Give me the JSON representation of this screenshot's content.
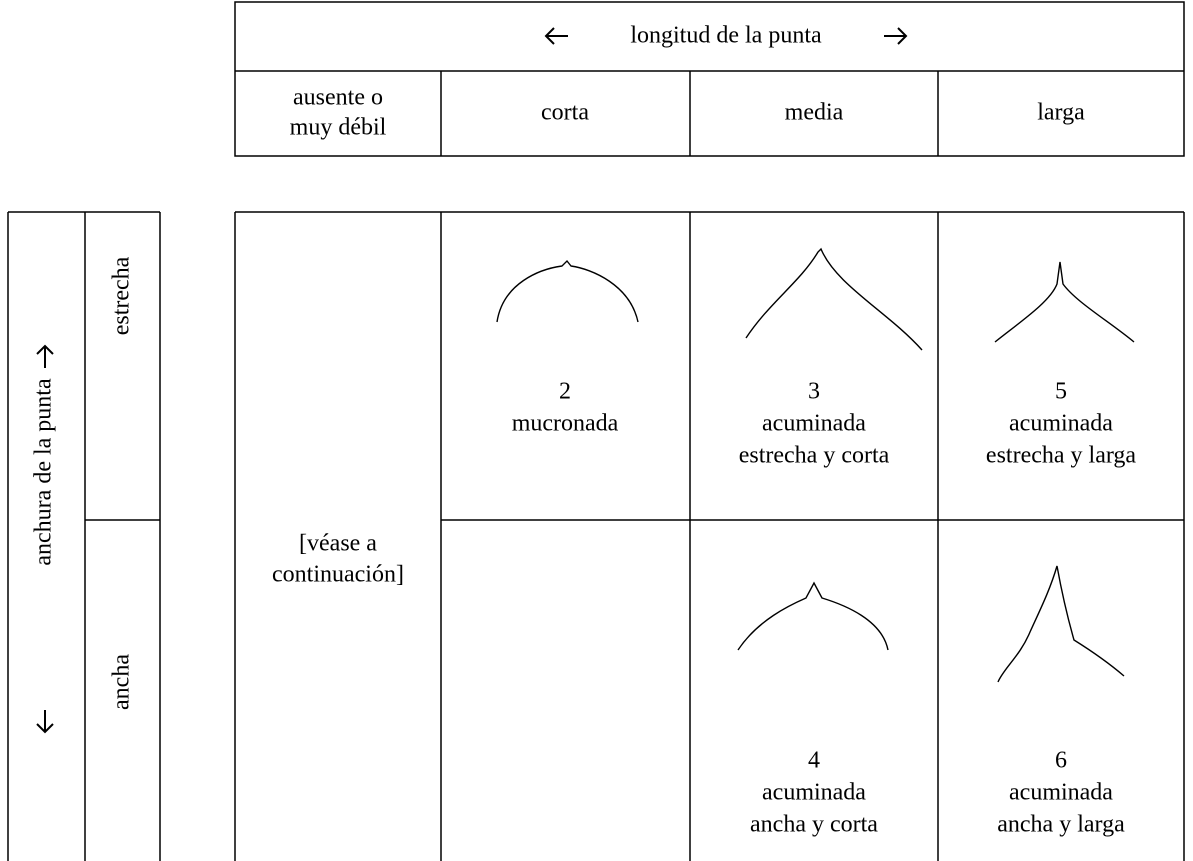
{
  "header_table": {
    "title": "longitud de la punta",
    "columns": [
      [
        "ausente o",
        "muy débil"
      ],
      [
        "corta"
      ],
      [
        "media"
      ],
      [
        "larga"
      ]
    ]
  },
  "side_table": {
    "title": "anchura de la punta",
    "rows": [
      "estrecha",
      "ancha"
    ]
  },
  "main_table": {
    "merged_cell": [
      "[véase a",
      "continuación]"
    ],
    "cells": [
      {
        "number": "2",
        "label": [
          "mucronada"
        ]
      },
      {
        "number": "3",
        "label": [
          "acuminada",
          "estrecha y corta"
        ]
      },
      {
        "number": "5",
        "label": [
          "acuminada",
          "estrecha y larga"
        ]
      },
      {
        "number": "4",
        "label": [
          "acuminada",
          "ancha y corta"
        ]
      },
      {
        "number": "6",
        "label": [
          "acuminada",
          "ancha y larga"
        ]
      }
    ]
  }
}
